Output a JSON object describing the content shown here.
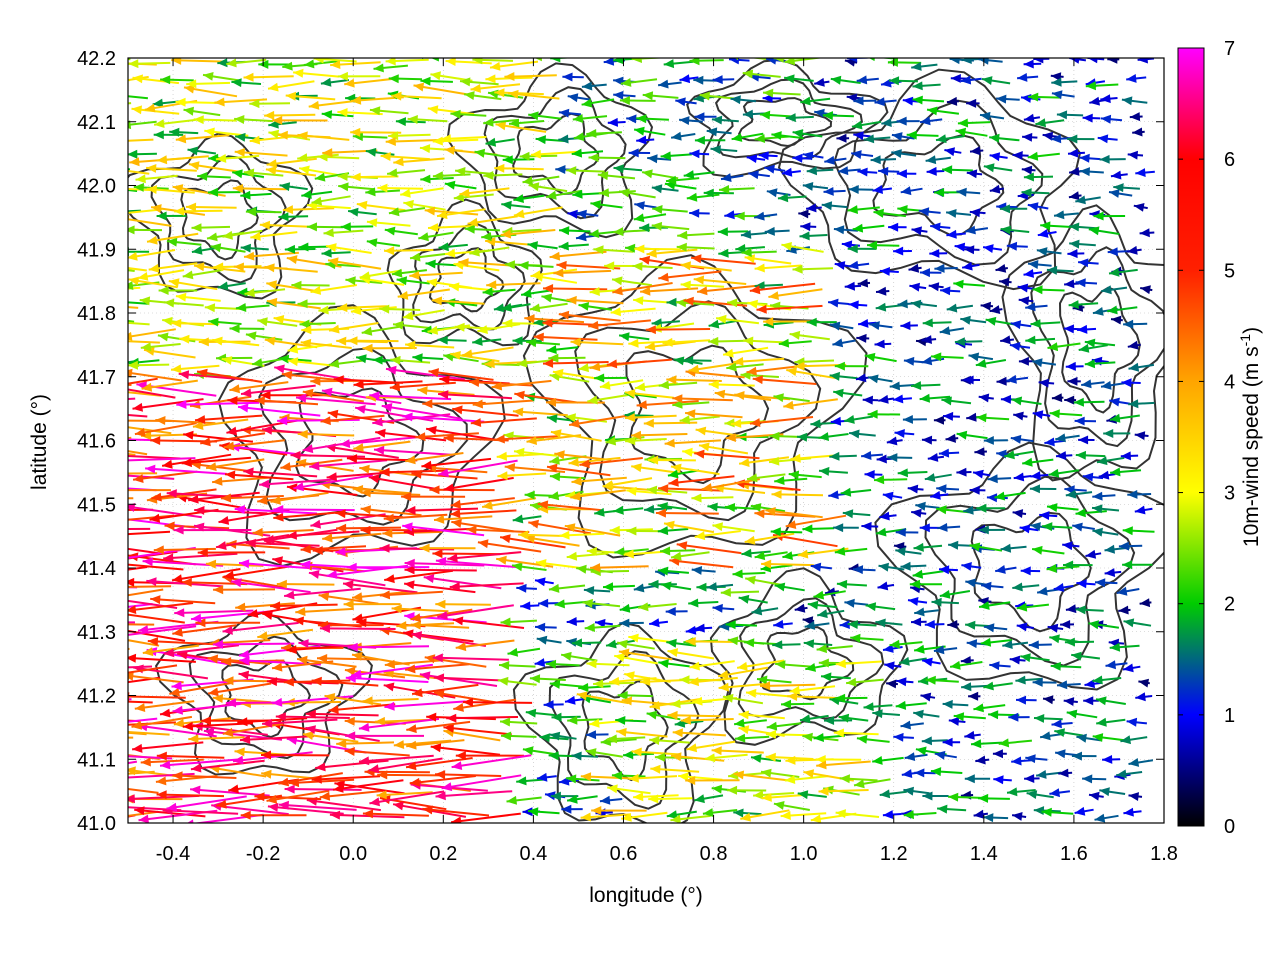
{
  "chart_data": {
    "type": "quiver",
    "title": "",
    "xlabel": "longitude (°)",
    "ylabel": "latitude (°)",
    "xlim": [
      -0.5,
      1.8
    ],
    "ylim": [
      41.0,
      42.2
    ],
    "xticks": [
      -0.4,
      -0.2,
      0.0,
      0.2,
      0.4,
      0.6,
      0.8,
      1.0,
      1.2,
      1.4,
      1.6,
      1.8
    ],
    "xtick_labels": [
      "-0.4",
      "-0.2",
      "0.0",
      "0.2",
      "0.4",
      "0.6",
      "0.8",
      "1.0",
      "1.2",
      "1.4",
      "1.6",
      "1.8"
    ],
    "yticks": [
      41.0,
      41.1,
      41.2,
      41.3,
      41.4,
      41.5,
      41.6,
      41.7,
      41.8,
      41.9,
      42.0,
      42.1,
      42.2
    ],
    "ytick_labels": [
      "41.0",
      "41.1",
      "41.2",
      "41.3",
      "41.4",
      "41.5",
      "41.6",
      "41.7",
      "41.8",
      "41.9",
      "42.0",
      "42.1",
      "42.2"
    ],
    "grid": true,
    "colorbar": {
      "label": "10m-wind speed (m s",
      "label_superscript": "-1",
      "label_suffix": ")",
      "range": [
        0,
        7
      ],
      "ticks": [
        0,
        1,
        2,
        3,
        4,
        5,
        6,
        7
      ],
      "tick_labels": [
        "0",
        "1",
        "2",
        "3",
        "4",
        "5",
        "6",
        "7"
      ],
      "colors": [
        "#000000",
        "#0000ff",
        "#00cc00",
        "#ffff00",
        "#ffa500",
        "#ff0000",
        "#ff00ff"
      ]
    },
    "wind_direction": "predominantly easterly (vectors pointing west)",
    "speed_regions": [
      {
        "region": "lon -0.5 to 0.4, lat 41.0 to 41.7",
        "speed_range": [
          4.5,
          7.0
        ]
      },
      {
        "region": "lon -0.5 to 0.5, lat 41.7 to 42.2",
        "speed_range": [
          2.0,
          4.5
        ]
      },
      {
        "region": "lon 0.4 to 1.1, lat 41.4 to 41.9",
        "speed_range": [
          2.0,
          5.5
        ]
      },
      {
        "region": "lon 0.6 to 1.2, lat 41.0 to 41.3",
        "speed_range": [
          2.0,
          4.5
        ]
      },
      {
        "region": "lon 1.0 to 1.8, lat 41.0 to 42.2",
        "speed_range": [
          0.5,
          2.5
        ]
      }
    ],
    "contours": "terrain elevation contours (dark gray)"
  }
}
